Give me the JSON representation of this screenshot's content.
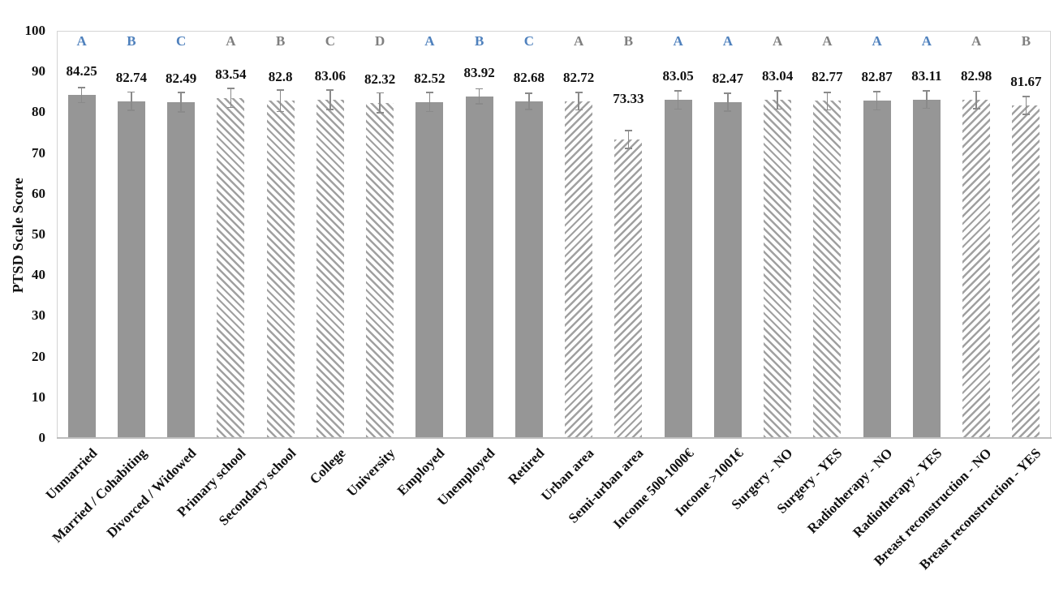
{
  "chart_data": {
    "type": "bar",
    "title": "",
    "xlabel": "",
    "ylabel": "PTSD Scale Score",
    "ylim": [
      0,
      100
    ],
    "yticks": [
      0,
      10,
      20,
      30,
      40,
      50,
      60,
      70,
      80,
      90,
      100
    ],
    "grid": false,
    "legend": "none",
    "error_bars": true,
    "categories": [
      "Unmarried",
      "Married / Cohabiting",
      "Divorced / Widowed",
      "Primary school",
      "Secondary school",
      "College",
      "University",
      "Employed",
      "Unemployed",
      "Retired",
      "Urban area",
      "Semi-urban area",
      "Income 500-1000€",
      "Income >1001€",
      "Surgery - NO",
      "Surgery - YES",
      "Radiotherapy - NO",
      "Radiotherapy - YES",
      "Breast reconstruction - NO",
      "Breast reconstruction - YES"
    ],
    "values": [
      84.25,
      82.74,
      82.49,
      83.54,
      82.8,
      83.06,
      82.32,
      82.52,
      83.92,
      82.68,
      82.72,
      73.33,
      83.05,
      82.47,
      83.04,
      82.77,
      82.87,
      83.11,
      82.98,
      81.67
    ],
    "value_labels": [
      "84.25",
      "82.74",
      "82.49",
      "83.54",
      "82.8",
      "83.06",
      "82.32",
      "82.52",
      "83.92",
      "82.68",
      "82.72",
      "73.33",
      "83.05",
      "82.47",
      "83.04",
      "82.77",
      "82.87",
      "83.11",
      "82.98",
      "81.67"
    ],
    "errors": [
      1.7,
      2.1,
      2.2,
      2.2,
      2.5,
      2.2,
      2.3,
      2.2,
      1.7,
      1.9,
      2.0,
      2.0,
      2.1,
      2.0,
      2.1,
      2.0,
      2.1,
      2.0,
      2.0,
      2.0
    ],
    "significance_letters": [
      "A",
      "B",
      "C",
      "A",
      "B",
      "C",
      "D",
      "A",
      "B",
      "C",
      "A",
      "B",
      "A",
      "A",
      "A",
      "A",
      "A",
      "A",
      "A",
      "B"
    ],
    "letter_tones": [
      "blue",
      "blue",
      "blue",
      "gray",
      "gray",
      "gray",
      "gray",
      "blue",
      "blue",
      "blue",
      "gray",
      "gray",
      "blue",
      "blue",
      "gray",
      "gray",
      "blue",
      "blue",
      "gray",
      "gray"
    ],
    "bar_patterns": [
      "solid",
      "solid",
      "solid",
      "hatch_down",
      "hatch_down",
      "hatch_down",
      "hatch_down",
      "solid",
      "solid",
      "solid",
      "hatch_up",
      "hatch_up",
      "solid",
      "solid",
      "hatch_down",
      "hatch_down",
      "solid",
      "solid",
      "hatch_up",
      "hatch_up"
    ],
    "colors": {
      "bar_fill": "#969696",
      "hatch_stripe": "#a0a0a0",
      "hatch_background": "#ffffff",
      "error_bar": "#8a8a8a",
      "letter_blue": "#4f81bd",
      "letter_gray": "#7f7f7f",
      "text": "#111111",
      "plot_border": "#d4d4d4"
    }
  }
}
